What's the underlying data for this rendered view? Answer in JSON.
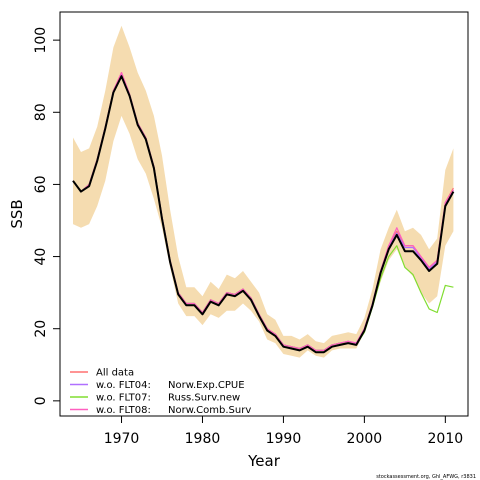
{
  "chart_data": {
    "type": "line",
    "title": "",
    "xlabel": "Year",
    "ylabel": "SSB",
    "xlim": [
      1962.4,
      2012.8
    ],
    "ylim": [
      -4.2,
      107.8
    ],
    "xticks": [
      1970,
      1980,
      1990,
      2000,
      2010
    ],
    "yticks": [
      0,
      20,
      40,
      60,
      80,
      100
    ],
    "grid": false,
    "legend_position": "bottom-left",
    "x": [
      1964,
      1965,
      1966,
      1967,
      1968,
      1969,
      1970,
      1971,
      1972,
      1973,
      1974,
      1975,
      1976,
      1977,
      1978,
      1979,
      1980,
      1981,
      1982,
      1983,
      1984,
      1985,
      1986,
      1987,
      1988,
      1989,
      1990,
      1991,
      1992,
      1993,
      1994,
      1995,
      1996,
      1997,
      1998,
      1999,
      2000,
      2001,
      2002,
      2003,
      2004,
      2005,
      2006,
      2007,
      2008,
      2009,
      2010,
      2011
    ],
    "confidence_band": {
      "color": "#f5dcb0",
      "lower": [
        49,
        48,
        49,
        54,
        61,
        72,
        79,
        74,
        67,
        63,
        56,
        48,
        37,
        27,
        23.5,
        23.5,
        21,
        24,
        23,
        25,
        25,
        27,
        25,
        22,
        17,
        16,
        13,
        12.5,
        12,
        14,
        12.5,
        12,
        14,
        14.5,
        14.5,
        14.5,
        19,
        26,
        33,
        39,
        42,
        37,
        34.5,
        30,
        27,
        29,
        43,
        47
      ],
      "upper": [
        73,
        69,
        70,
        76,
        86,
        98,
        104,
        98,
        91,
        86,
        79,
        68,
        53,
        40,
        31.5,
        31.5,
        29,
        33,
        31,
        35,
        34,
        36,
        33,
        30,
        24,
        22.5,
        18,
        18,
        17,
        18.5,
        16.5,
        16,
        18,
        18.5,
        19,
        18.5,
        23,
        31,
        42,
        48,
        53,
        47,
        48,
        46,
        42,
        45,
        64,
        70
      ]
    },
    "series": [
      {
        "name": "All data",
        "color": "#ff7070",
        "values": [
          61,
          58,
          60,
          67,
          76,
          86,
          91,
          85,
          77,
          73,
          65,
          51,
          39,
          30,
          27,
          27,
          24.5,
          28,
          27,
          30,
          29.5,
          31,
          28.5,
          24,
          20,
          18.5,
          15.5,
          15,
          14.5,
          15.5,
          14,
          14,
          15.5,
          16,
          16.5,
          16,
          20,
          27,
          36,
          43,
          47,
          43,
          43,
          40,
          37,
          39,
          55,
          59
        ]
      },
      {
        "name": "w.o. FLT04:",
        "color": "#b070ff",
        "values": [
          61,
          58,
          60,
          67,
          76,
          86,
          90.5,
          85,
          77,
          73,
          65,
          51,
          39,
          30,
          27,
          27,
          24.5,
          28,
          27,
          30,
          29.5,
          31,
          28.5,
          24,
          20,
          18.5,
          15.5,
          15,
          14.5,
          15.5,
          14,
          14,
          15.5,
          16,
          16.5,
          16,
          20,
          27,
          36,
          42.5,
          46.5,
          42.5,
          42.5,
          39.5,
          36.5,
          38.5,
          54.5,
          58.5
        ]
      },
      {
        "name": "w.o. FLT07:",
        "color": "#80dd30",
        "values": [
          61,
          58,
          60,
          67,
          76,
          86,
          90,
          85,
          77,
          73,
          65,
          51,
          39,
          30,
          27,
          27,
          24.5,
          28,
          27,
          30,
          29.5,
          31,
          28.5,
          24,
          20,
          18.5,
          15.5,
          15,
          14.5,
          15.5,
          14,
          14,
          15.5,
          16,
          16,
          15.5,
          19,
          26,
          34,
          40,
          43,
          37,
          35,
          30,
          25.5,
          24.5,
          32,
          31.5
        ]
      },
      {
        "name": "w.o. FLT08:",
        "color": "#ff60c0",
        "values": [
          61,
          58,
          60,
          67,
          76,
          86,
          91,
          85,
          77,
          73,
          65,
          51,
          39,
          30,
          27,
          27,
          24.5,
          28,
          27,
          30,
          29.5,
          31,
          28.5,
          24,
          20,
          18.5,
          15.5,
          15,
          14.5,
          15.5,
          14,
          14,
          15.5,
          16,
          16.5,
          16,
          20,
          27,
          36,
          43,
          48,
          43,
          43,
          40,
          37,
          39,
          55,
          58.5
        ]
      },
      {
        "color": "#000000",
        "values": [
          61,
          58,
          59.5,
          66.5,
          75.5,
          85.5,
          90,
          84.5,
          76.5,
          72.5,
          64.5,
          50.5,
          38.5,
          29.5,
          26.5,
          26.5,
          24,
          27.5,
          26.5,
          29.5,
          29,
          30.5,
          28,
          23.5,
          19.5,
          18,
          15,
          14.5,
          14,
          15,
          13.5,
          13.5,
          15,
          15.5,
          16,
          15.5,
          19.5,
          26.5,
          35.5,
          42,
          46,
          41.5,
          41.5,
          39,
          36,
          38,
          54,
          58
        ]
      }
    ]
  },
  "legend": {
    "items": [
      {
        "label": "All data",
        "fleet": "",
        "color": "#ff7070"
      },
      {
        "label": "w.o. FLT04:",
        "fleet": "Norw.Exp.CPUE",
        "color": "#b070ff"
      },
      {
        "label": "w.o. FLT07:",
        "fleet": "Russ.Surv.new",
        "color": "#80dd30"
      },
      {
        "label": "w.o. FLT08:",
        "fleet": "Norw.Comb.Surv",
        "color": "#ff60c0"
      }
    ]
  },
  "footer": "stockassessment.org, Ghl_AFWG, r3831"
}
